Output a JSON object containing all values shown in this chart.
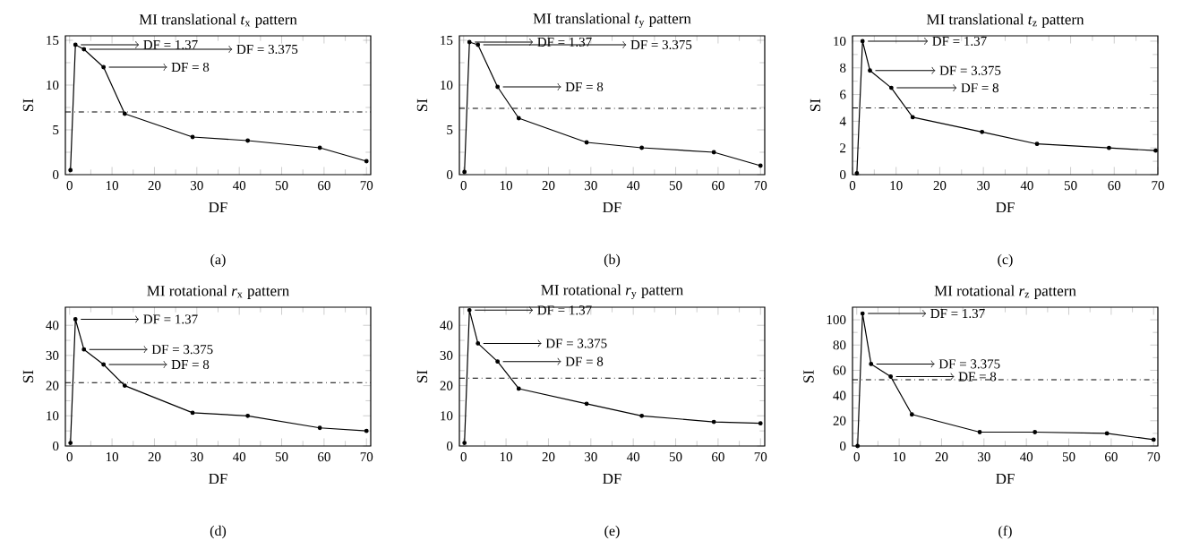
{
  "chart_data": [
    {
      "type": "line",
      "title": "MI translational *t*$_{x}$ pattern",
      "xlabel": "DF",
      "ylabel": "SI",
      "marker": "circle",
      "color": "#000000",
      "x": [
        0.2,
        1.37,
        3.375,
        8,
        13,
        29,
        42,
        59,
        70
      ],
      "values": [
        0.5,
        14.5,
        14,
        12,
        6.8,
        4.2,
        3.8,
        3,
        1.5
      ],
      "xlim": [
        -1,
        71
      ],
      "ylim": [
        0,
        15.5
      ],
      "xticks": [
        0,
        10,
        20,
        30,
        40,
        50,
        60,
        70
      ],
      "yticks": [
        0,
        5,
        10,
        15
      ],
      "ref_lines": [
        {
          "axis": "y",
          "value": 7
        }
      ],
      "annotations": [
        "(a)",
        "DF = 1.37",
        "DF = 3.375",
        "DF = 8"
      ]
    },
    {
      "type": "line",
      "title": "MI translational *t*$_{y}$ pattern",
      "xlabel": "DF",
      "ylabel": "SI",
      "marker": "circle",
      "color": "#000000",
      "x": [
        0.2,
        1.37,
        3.375,
        8,
        13,
        29,
        42,
        59,
        70
      ],
      "values": [
        0.3,
        14.8,
        14.5,
        9.8,
        6.3,
        3.6,
        3,
        2.5,
        1
      ],
      "xlim": [
        -1,
        71
      ],
      "ylim": [
        0,
        15.5
      ],
      "xticks": [
        0,
        10,
        20,
        30,
        40,
        50,
        60,
        70
      ],
      "yticks": [
        0,
        5,
        10,
        15
      ],
      "ref_lines": [
        {
          "axis": "y",
          "value": 7.4
        }
      ],
      "annotations": [
        "(b)",
        "DF = 1.37",
        "DF = 3.375",
        "DF = 8"
      ]
    },
    {
      "type": "line",
      "title": "MI translational *t*$_{z}$ pattern",
      "xlabel": "DF",
      "ylabel": "SI",
      "marker": "circle",
      "color": "#000000",
      "x": [
        1,
        2.3,
        4,
        8.9,
        13.8,
        29.7,
        42.3,
        58.8,
        69.5
      ],
      "values": [
        0.1,
        10,
        7.8,
        6.5,
        4.3,
        3.2,
        2.3,
        2,
        1.8
      ],
      "xlim": [
        0,
        70
      ],
      "ylim": [
        0,
        10.4
      ],
      "xticks": [
        0,
        10,
        20,
        30,
        40,
        50,
        60,
        70
      ],
      "yticks": [
        0,
        2,
        4,
        6,
        8,
        10
      ],
      "ref_lines": [
        {
          "axis": "y",
          "value": 5
        }
      ],
      "annotations": [
        "(c)",
        "DF = 1.37",
        "DF = 3.375",
        "DF = 8"
      ]
    },
    {
      "type": "line",
      "title": "MI rotational *r*$_{x}$ pattern",
      "xlabel": "DF",
      "ylabel": "SI",
      "marker": "circle",
      "color": "#000000",
      "x": [
        0.2,
        1.37,
        3.375,
        8,
        13,
        29,
        42,
        59,
        70
      ],
      "values": [
        1,
        42,
        32,
        27,
        20,
        11,
        10,
        6,
        5
      ],
      "xlim": [
        -1,
        71
      ],
      "ylim": [
        0,
        46
      ],
      "xticks": [
        0,
        10,
        20,
        30,
        40,
        50,
        60,
        70
      ],
      "yticks": [
        0,
        10,
        20,
        30,
        40
      ],
      "ref_lines": [
        {
          "axis": "y",
          "value": 21
        }
      ],
      "annotations": [
        "(d)",
        "DF = 1.37",
        "DF = 3.375",
        "DF = 8"
      ]
    },
    {
      "type": "line",
      "title": "MI rotational *r*$_{y}$ pattern",
      "xlabel": "DF",
      "ylabel": "SI",
      "marker": "circle",
      "color": "#000000",
      "x": [
        0.2,
        1.37,
        3.375,
        8,
        13,
        29,
        42,
        59,
        70
      ],
      "values": [
        1,
        45,
        34,
        28,
        19,
        14,
        10,
        8,
        7.5
      ],
      "xlim": [
        -1,
        71
      ],
      "ylim": [
        0,
        46
      ],
      "xticks": [
        0,
        10,
        20,
        30,
        40,
        50,
        60,
        70
      ],
      "yticks": [
        0,
        10,
        20,
        30,
        40
      ],
      "ref_lines": [
        {
          "axis": "y",
          "value": 22.5
        }
      ],
      "annotations": [
        "(e)",
        "DF = 1.37",
        "DF = 3.375",
        "DF = 8"
      ]
    },
    {
      "type": "line",
      "title": "MI rotational *r*$_{z}$ pattern",
      "xlabel": "DF",
      "ylabel": "SI",
      "marker": "circle",
      "color": "#000000",
      "x": [
        0.2,
        1.37,
        3.375,
        8,
        13,
        29,
        42,
        59,
        70
      ],
      "values": [
        0,
        105,
        65,
        55,
        25,
        11,
        11,
        10,
        5
      ],
      "xlim": [
        -1,
        71
      ],
      "ylim": [
        0,
        110
      ],
      "xticks": [
        0,
        10,
        20,
        30,
        40,
        50,
        60,
        70
      ],
      "yticks": [
        0,
        20,
        40,
        60,
        80,
        100
      ],
      "ref_lines": [
        {
          "axis": "y",
          "value": 52.5
        }
      ],
      "annotations": [
        "(f)",
        "DF = 1.37",
        "DF = 3.375",
        "DF = 8"
      ]
    }
  ]
}
